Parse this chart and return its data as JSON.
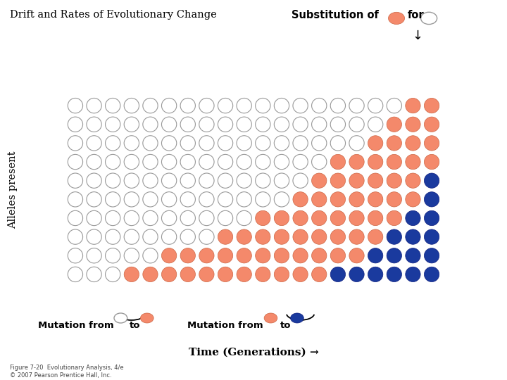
{
  "title": "Drift and Rates of Evolutionary Change",
  "n_cols": 20,
  "n_rows": 10,
  "white_color": "#ffffff",
  "white_edge": "#999999",
  "salmon_color": "#F4896B",
  "salmon_edge": "#cc6644",
  "blue_color": "#1a3a9e",
  "blue_edge": "#102080",
  "grid_white_counts": [
    18,
    17,
    16,
    14,
    13,
    12,
    10,
    8,
    5,
    3
  ],
  "grid_salmon_counts": [
    2,
    3,
    4,
    6,
    6,
    7,
    8,
    9,
    11,
    11
  ],
  "grid_blue_counts": [
    0,
    0,
    0,
    0,
    1,
    1,
    2,
    3,
    4,
    6
  ],
  "xlabel": "Time (Generations) →",
  "ylabel": "Alleles present",
  "footer": "Figure 7-20  Evolutionary Analysis, 4/e\n© 2007 Pearson Prentice Hall, Inc.",
  "figure_bg": "#ffffff"
}
